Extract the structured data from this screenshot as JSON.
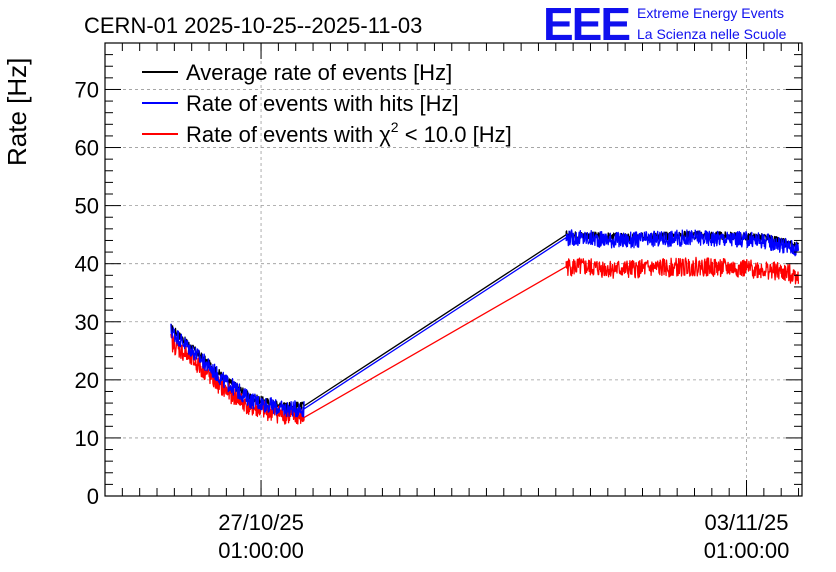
{
  "chart_data": {
    "type": "line",
    "title": "CERN-01 2025-10-25--2025-11-03",
    "ylabel": "Rate [Hz]",
    "xlabel": "",
    "ylim": [
      0,
      78
    ],
    "yticks": [
      0,
      10,
      20,
      30,
      40,
      50,
      60,
      70
    ],
    "xlim_days": [
      0,
      10.05
    ],
    "xticks": [
      {
        "day": 2.25,
        "date": "27/10/25",
        "time": "01:00:00"
      },
      {
        "day": 9.25,
        "date": "03/11/25",
        "time": "01:00:00"
      }
    ],
    "grid": true,
    "legend": {
      "placement": "top-left",
      "entries": [
        {
          "label": "Average rate of events [Hz]",
          "color": "#000000"
        },
        {
          "label": "Rate of events with hits [Hz]",
          "color": "#0000ff"
        },
        {
          "label_prefix": "Rate of events with ",
          "label_chi": "χ",
          "label_sup": "2",
          "label_suffix": " < 10.0 [Hz]",
          "color": "#ff0000"
        }
      ]
    },
    "series": [
      {
        "name": "Average rate of events [Hz]",
        "color": "#000000",
        "x": [
          0.95,
          1.3,
          1.7,
          2.1,
          2.55,
          2.87,
          6.65,
          7.5,
          8.5,
          9.5,
          10.0
        ],
        "y": [
          29.0,
          25.0,
          20.5,
          17.0,
          15.5,
          15.5,
          45.0,
          44.5,
          45.0,
          44.5,
          43.0
        ]
      },
      {
        "name": "Rate of events with hits [Hz]",
        "color": "#0000ff",
        "x": [
          0.95,
          1.3,
          1.7,
          2.1,
          2.55,
          2.87,
          6.65,
          7.5,
          8.5,
          9.5,
          10.0
        ],
        "y": [
          28.5,
          24.5,
          20.0,
          16.5,
          15.0,
          15.0,
          44.5,
          44.0,
          44.5,
          44.0,
          42.5
        ]
      },
      {
        "name": "Rate of events with chi2 < 10.0 [Hz]",
        "color": "#ff0000",
        "x": [
          0.95,
          1.3,
          1.7,
          2.1,
          2.55,
          2.87,
          6.65,
          7.5,
          8.5,
          9.5,
          10.0
        ],
        "y": [
          26.5,
          23.0,
          18.5,
          15.2,
          14.0,
          13.5,
          39.5,
          39.0,
          39.5,
          39.0,
          38.0
        ]
      }
    ]
  },
  "logo": {
    "text": "EEE",
    "line1": "Extreme Energy Events",
    "line2": "La Scienza nelle Scuole"
  }
}
